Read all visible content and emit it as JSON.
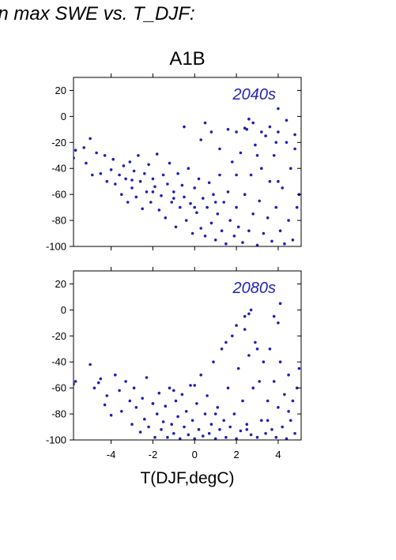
{
  "heading": "in max SWE vs. T_DJF:",
  "figure_title": "A1B",
  "colors": {
    "points": "#1f1fb8",
    "axes": "#000000",
    "panel_label": "#2323b4"
  },
  "chart_data": [
    {
      "type": "scatter",
      "title": "A1B",
      "panel_label": "2040s",
      "xlabel": "T(DJF,degC)",
      "ylabel": "",
      "xlim": [
        -5.8,
        5.1
      ],
      "ylim": [
        -100,
        30
      ],
      "xticks": [
        -4,
        -2,
        0,
        2,
        4
      ],
      "yticks": [
        20,
        0,
        -20,
        -40,
        -60,
        -80,
        -100
      ],
      "ytick_labels": [
        "20",
        "0",
        "-20",
        "-40",
        "-60",
        "-80",
        "-100"
      ],
      "series": [
        {
          "x": [
            -5.8,
            -5.7,
            -5.3,
            -5.2,
            -5.0,
            -4.9,
            -4.7,
            -4.5,
            -4.3,
            -4.2,
            -4.0,
            -3.9,
            -3.8,
            -3.6,
            -3.5,
            -3.4,
            -3.3,
            -3.2,
            -3.1,
            -3.0,
            -2.9,
            -2.8,
            -2.7,
            -2.6,
            -2.5,
            -2.4,
            -2.3,
            -2.2,
            -2.1,
            -2.0,
            -1.9,
            -1.8,
            -1.7,
            -1.6,
            -1.5,
            -1.4,
            -1.3,
            -1.2,
            -1.1,
            -1.0,
            -0.9,
            -0.8,
            -0.7,
            -0.6,
            -0.5,
            -0.4,
            -0.3,
            -0.2,
            -0.1,
            0.0,
            0.1,
            0.2,
            0.3,
            0.4,
            0.5,
            0.6,
            0.7,
            0.8,
            0.9,
            1.0,
            1.1,
            1.2,
            1.3,
            1.4,
            1.5,
            1.6,
            1.7,
            1.8,
            1.9,
            2.0,
            2.1,
            2.2,
            2.3,
            2.4,
            2.5,
            2.6,
            2.7,
            2.8,
            2.9,
            3.0,
            3.1,
            3.2,
            3.3,
            3.4,
            3.5,
            3.6,
            3.7,
            3.8,
            3.9,
            4.0,
            4.1,
            4.2,
            4.3,
            4.4,
            4.5,
            4.6,
            4.7,
            4.8,
            4.9,
            5.0,
            -3.0,
            -2.0,
            -1.0,
            0.0,
            1.0,
            2.0,
            3.0,
            4.0,
            2.6,
            2.8,
            3.2,
            3.6,
            4.0,
            4.4,
            4.8,
            1.6,
            2.0,
            2.4,
            0.5,
            0.8,
            1.2,
            -0.5,
            0.3,
            3.9
          ],
          "y": [
            -32,
            -26,
            -24,
            -36,
            -17,
            -45,
            -28,
            -44,
            -30,
            -50,
            -41,
            -33,
            -52,
            -45,
            -60,
            -38,
            -48,
            -66,
            -35,
            -55,
            -42,
            -62,
            -30,
            -50,
            -71,
            -44,
            -58,
            -37,
            -66,
            -48,
            -54,
            -29,
            -72,
            -61,
            -45,
            -78,
            -52,
            -36,
            -66,
            -58,
            -85,
            -44,
            -70,
            -53,
            -62,
            -80,
            -40,
            -67,
            -90,
            -55,
            -74,
            -48,
            -86,
            -63,
            -92,
            -70,
            -51,
            -82,
            -60,
            -95,
            -75,
            -45,
            -88,
            -66,
            -98,
            -58,
            -80,
            -35,
            -92,
            -70,
            -85,
            -28,
            -97,
            -60,
            -10,
            -88,
            -45,
            -75,
            -22,
            -99,
            -65,
            -40,
            -90,
            -15,
            -78,
            -50,
            -96,
            -30,
            -70,
            -12,
            -88,
            -55,
            -98,
            -20,
            -80,
            -40,
            -95,
            -25,
            -70,
            -60,
            -49,
            -58,
            -63,
            -70,
            -66,
            -45,
            -30,
            -50,
            -2,
            -5,
            -12,
            -8,
            6,
            -3,
            -14,
            -10,
            -12,
            -9,
            -5,
            -12,
            -25,
            -8,
            -18,
            -20
          ]
        }
      ]
    },
    {
      "type": "scatter",
      "panel_label": "2080s",
      "xlabel": "T(DJF,degC)",
      "ylabel": "",
      "xlim": [
        -5.8,
        5.1
      ],
      "ylim": [
        -100,
        30
      ],
      "xticks": [
        -4,
        -2,
        0,
        2,
        4
      ],
      "xtick_labels": [
        "-4",
        "-2",
        "0",
        "2",
        "4"
      ],
      "yticks": [
        20,
        0,
        -20,
        -40,
        -60,
        -80,
        -100
      ],
      "ytick_labels": [
        "20",
        "0",
        "-20",
        "-40",
        "-60",
        "-80",
        "-100"
      ],
      "series": [
        {
          "x": [
            -5.8,
            -5.7,
            -5.0,
            -4.8,
            -4.6,
            -4.5,
            -4.3,
            -4.2,
            -4.0,
            -3.8,
            -3.6,
            -3.5,
            -3.3,
            -3.1,
            -3.0,
            -2.9,
            -2.8,
            -2.6,
            -2.5,
            -2.4,
            -2.3,
            -2.2,
            -2.0,
            -1.9,
            -1.8,
            -1.7,
            -1.6,
            -1.5,
            -1.4,
            -1.3,
            -1.2,
            -1.1,
            -1.0,
            -0.9,
            -0.8,
            -0.7,
            -0.6,
            -0.5,
            -0.4,
            -0.3,
            -0.2,
            -0.1,
            0.0,
            0.1,
            0.2,
            0.3,
            0.4,
            0.5,
            0.6,
            0.7,
            0.8,
            0.9,
            1.0,
            1.1,
            1.2,
            1.3,
            1.4,
            1.5,
            1.6,
            1.7,
            1.8,
            1.9,
            2.0,
            2.1,
            2.2,
            2.3,
            2.4,
            2.5,
            2.6,
            2.7,
            2.8,
            2.9,
            3.0,
            3.1,
            3.2,
            3.3,
            3.4,
            3.5,
            3.6,
            3.7,
            3.8,
            3.9,
            4.0,
            4.1,
            4.2,
            4.3,
            4.4,
            4.5,
            4.6,
            4.7,
            4.8,
            4.9,
            5.0,
            2.6,
            2.7,
            2.4,
            3.8,
            4.0,
            4.1,
            1.5,
            2.0,
            3.0,
            0.0,
            -1.0,
            -2.0,
            1.0,
            2.5,
            3.5,
            4.5
          ],
          "y": [
            -57,
            -55,
            -42,
            -60,
            -56,
            -53,
            -73,
            -66,
            -81,
            -50,
            -62,
            -78,
            -55,
            -70,
            -88,
            -60,
            -75,
            -94,
            -68,
            -84,
            -52,
            -90,
            -72,
            -98,
            -80,
            -64,
            -92,
            -86,
            -74,
            -98,
            -60,
            -88,
            -95,
            -70,
            -82,
            -99,
            -65,
            -90,
            -78,
            -96,
            -58,
            -85,
            -99,
            -72,
            -92,
            -50,
            -97,
            -80,
            -66,
            -95,
            -88,
            -40,
            -99,
            -75,
            -92,
            -30,
            -85,
            -98,
            -60,
            -90,
            -20,
            -80,
            -99,
            -45,
            -93,
            -70,
            -5,
            -88,
            -35,
            -96,
            -60,
            -25,
            -98,
            -55,
            -85,
            -40,
            -95,
            -70,
            -30,
            -92,
            -55,
            -98,
            -75,
            -40,
            -90,
            -65,
            -99,
            -50,
            -85,
            -70,
            -95,
            -60,
            -45,
            -3,
            0,
            -15,
            -5,
            -10,
            5,
            -25,
            -12,
            -30,
            -58,
            -62,
            -72,
            -80,
            -92,
            -85,
            -78
          ]
        }
      ]
    }
  ]
}
